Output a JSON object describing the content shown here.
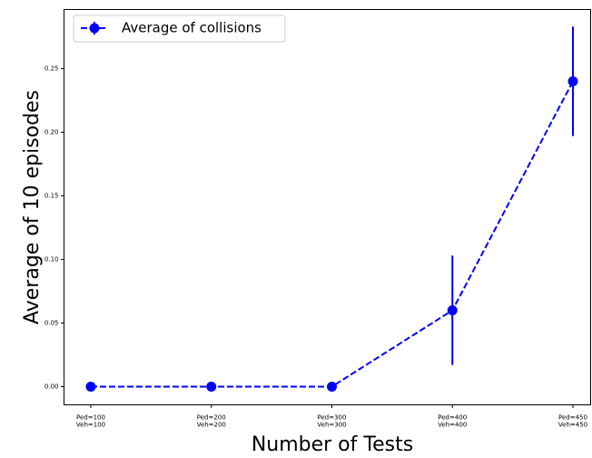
{
  "chart_data": {
    "type": "line",
    "xlabel": "Number of Tests",
    "ylabel": "Average of 10 episodes",
    "categories": [
      "Ped=100\nVeh=100",
      "Ped=200\nVeh=200",
      "Ped=300\nVeh=300",
      "Ped=400\nVeh=400",
      "Ped=450\nVeh=450"
    ],
    "series": [
      {
        "name": "Average of collisions",
        "color": "#0000ff",
        "values": [
          0,
          0,
          0,
          0.06,
          0.24
        ],
        "errors": [
          0,
          0,
          0,
          0.043,
          0.043
        ]
      }
    ],
    "ylim": [
      -0.0143,
      0.2964
    ],
    "yticks": [
      {
        "value": 0,
        "label": "0.00"
      },
      0.05,
      {
        "value": 0.1,
        "label": "0.10"
      },
      0.15,
      {
        "value": 0.2,
        "label": "0.20"
      },
      0.25
    ],
    "legend": "upper left",
    "grid": false
  }
}
